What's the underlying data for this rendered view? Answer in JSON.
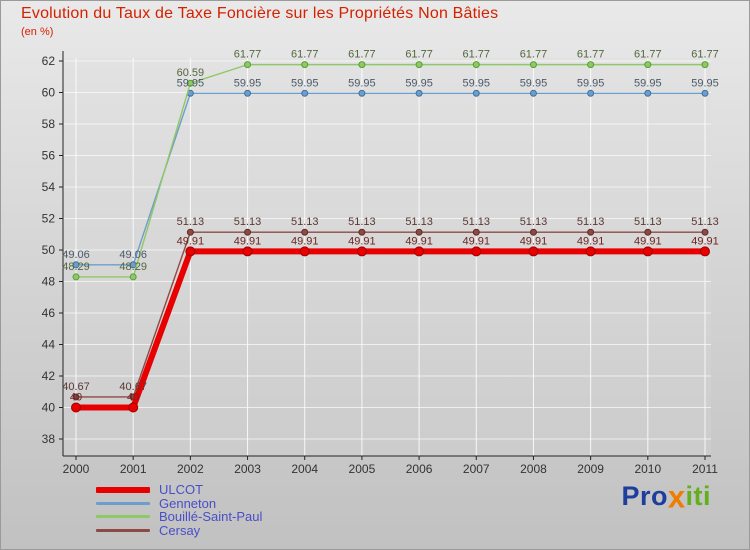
{
  "title": "Evolution du Taux de Taxe Foncière sur les Propriétés Non Bâties",
  "subtitle": "(en %)",
  "logo": {
    "part1": "Pro",
    "part2": "x",
    "part3": "iti"
  },
  "colors": {
    "title": "#d42100",
    "subtitle": "#d42100",
    "legend_text": "#4a4ec8",
    "logo_blue": "#1f3d9e",
    "logo_orange": "#f07d00",
    "logo_green": "#63b01e",
    "axis": "#222222",
    "tick_text": "#333333",
    "gridline": "#ffffff"
  },
  "chart_data": {
    "type": "line",
    "title": "Evolution du Taux de Taxe Foncière sur les Propriétés Non Bâties",
    "ylabel": "en %",
    "x": [
      2000,
      2001,
      2002,
      2003,
      2004,
      2005,
      2006,
      2007,
      2008,
      2009,
      2010,
      2011
    ],
    "ylim": [
      38,
      62
    ],
    "ytick_step": 2,
    "grid": true,
    "legend_position": "bottom-left",
    "series": [
      {
        "name": "ULCOT",
        "slug": "ulcot",
        "color": "#e80000",
        "marker_stroke": "#9e0000",
        "label_color": "#6e2520",
        "width": 6,
        "marker_r": 4.5,
        "values": [
          40,
          40,
          49.91,
          49.91,
          49.91,
          49.91,
          49.91,
          49.91,
          49.91,
          49.91,
          49.91,
          49.91
        ]
      },
      {
        "name": "Genneton",
        "slug": "genneton",
        "color": "#6d9ecb",
        "marker_stroke": "#3f6f9f",
        "label_color": "#4c5a68",
        "width": 1.4,
        "marker_r": 3,
        "values": [
          49.06,
          49.06,
          59.95,
          59.95,
          59.95,
          59.95,
          59.95,
          59.95,
          59.95,
          59.95,
          59.95,
          59.95
        ]
      },
      {
        "name": "Bouillé-Saint-Paul",
        "slug": "bouille-saint-paul",
        "color": "#8fc867",
        "marker_stroke": "#56a02e",
        "label_color": "#53663e",
        "width": 1.4,
        "marker_r": 3,
        "values": [
          48.29,
          48.29,
          60.59,
          61.77,
          61.77,
          61.77,
          61.77,
          61.77,
          61.77,
          61.77,
          61.77,
          61.77
        ]
      },
      {
        "name": "Cersay",
        "slug": "cersay",
        "color": "#8d4a45",
        "marker_stroke": "#5e2a26",
        "label_color": "#5a3834",
        "width": 1.4,
        "marker_r": 3,
        "values": [
          40.67,
          40.67,
          51.13,
          51.13,
          51.13,
          51.13,
          51.13,
          51.13,
          51.13,
          51.13,
          51.13,
          51.13
        ]
      }
    ]
  }
}
